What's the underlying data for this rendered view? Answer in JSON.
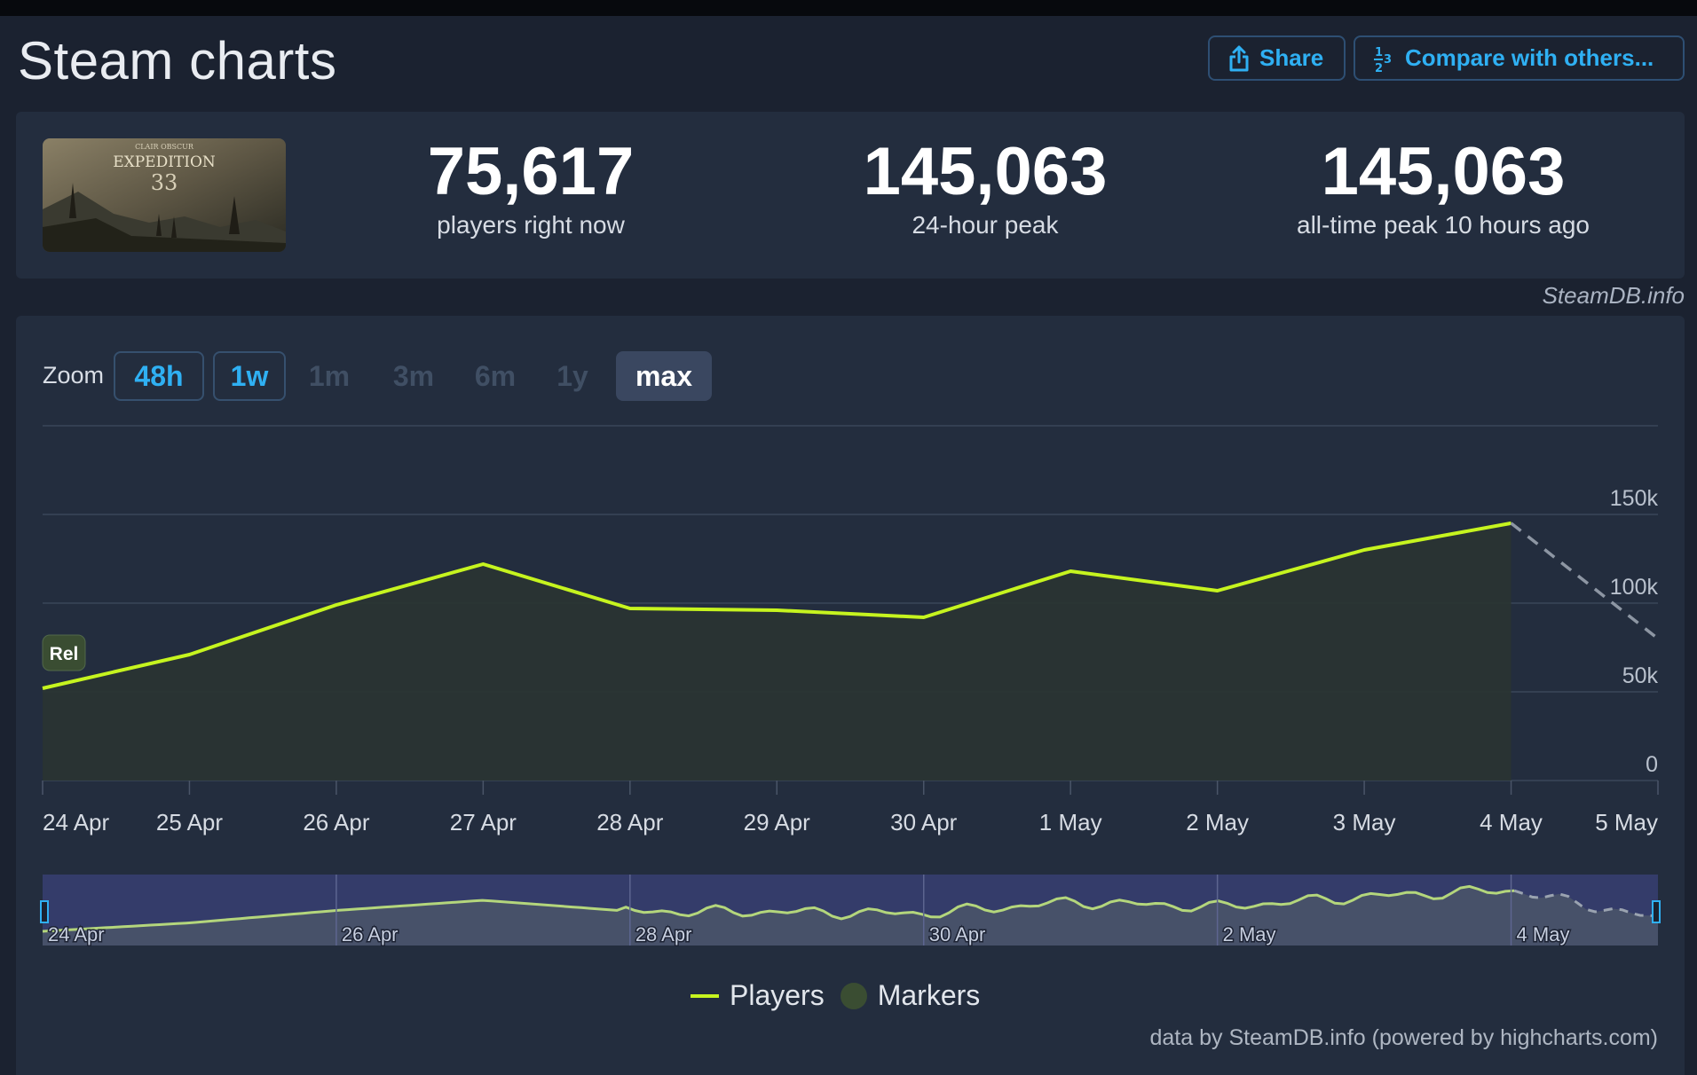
{
  "header": {
    "title": "Steam charts",
    "share_label": "Share",
    "compare_label": "Compare with others..."
  },
  "stats": {
    "current_players": "75,617",
    "current_label": "players right now",
    "peak_24h": "145,063",
    "peak_24h_label": "24-hour peak",
    "alltime_peak": "145,063",
    "alltime_label": "all-time peak 10 hours ago",
    "game_image_text": [
      "CLAIR OBSCUR",
      "EXPEDITION",
      "33"
    ]
  },
  "watermark": "SteamDB.info",
  "zoom": {
    "label": "Zoom",
    "buttons": [
      {
        "label": "48h",
        "state": "enabled"
      },
      {
        "label": "1w",
        "state": "enabled"
      },
      {
        "label": "1m",
        "state": "disabled"
      },
      {
        "label": "3m",
        "state": "disabled"
      },
      {
        "label": "6m",
        "state": "disabled"
      },
      {
        "label": "1y",
        "state": "disabled"
      },
      {
        "label": "max",
        "state": "selected"
      }
    ]
  },
  "chart_data": {
    "type": "line",
    "x": [
      "24 Apr",
      "25 Apr",
      "26 Apr",
      "27 Apr",
      "28 Apr",
      "29 Apr",
      "30 Apr",
      "1 May",
      "2 May",
      "3 May",
      "4 May",
      "5 May"
    ],
    "series": [
      {
        "name": "Players",
        "color": "#c6f41f",
        "values": [
          52000,
          71000,
          99000,
          122000,
          97000,
          96000,
          92000,
          118000,
          107000,
          130000,
          145063,
          null
        ]
      }
    ],
    "projection": {
      "from": "4 May",
      "to": "5 May",
      "values": [
        145063,
        80000
      ],
      "style": "dashed"
    },
    "yticks": [
      "0",
      "50k",
      "100k",
      "150k"
    ],
    "ylim": [
      0,
      200000
    ],
    "markers": [
      {
        "x": "24 Apr",
        "label": "Rel"
      }
    ],
    "navigator": {
      "tick_labels": [
        "24 Apr",
        "26 Apr",
        "28 Apr",
        "30 Apr",
        "2 May",
        "4 May"
      ]
    },
    "legend": [
      "Players",
      "Markers"
    ],
    "legend_position": "bottom",
    "credits": "data by SteamDB.info (powered by highcharts.com)"
  },
  "colors": {
    "accent": "#2fb0f3",
    "line": "#c6f41f",
    "panel": "#232d3e",
    "background": "#1b2230"
  }
}
